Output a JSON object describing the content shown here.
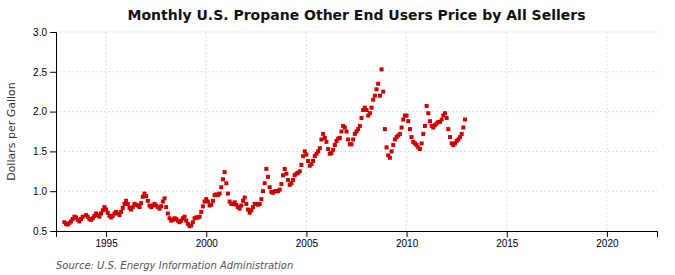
{
  "chart_data": {
    "type": "scatter",
    "title": "Monthly U.S. Propane Other End Users Price by All Sellers",
    "ylabel": "Dollars per Gallon",
    "annotations": [
      "Source: U.S. Energy Information Administration"
    ],
    "xlim": [
      1992.5,
      2022.5
    ],
    "ylim": [
      0.5,
      3.0
    ],
    "xticks": [
      1995,
      2000,
      2005,
      2010,
      2015,
      2020
    ],
    "yticks": [
      0.5,
      {
        "value": 1.0,
        "label": "1.0"
      },
      1.5,
      {
        "value": 2.0,
        "label": "2.0"
      },
      2.5,
      {
        "value": 3.0,
        "label": "3.0"
      }
    ],
    "grid": true,
    "color": "#cc0000",
    "marker": "square",
    "x": [
      1992.917,
      1993.0,
      1993.083,
      1993.167,
      1993.25,
      1993.333,
      1993.417,
      1993.5,
      1993.583,
      1993.667,
      1993.75,
      1993.833,
      1994.0,
      1994.083,
      1994.167,
      1994.25,
      1994.333,
      1994.417,
      1994.5,
      1994.583,
      1994.667,
      1994.75,
      1994.833,
      1994.917,
      1995.0,
      1995.083,
      1995.167,
      1995.25,
      1995.333,
      1995.417,
      1995.5,
      1995.583,
      1995.667,
      1995.75,
      1995.833,
      1995.917,
      1996.0,
      1996.083,
      1996.167,
      1996.25,
      1996.333,
      1996.417,
      1996.5,
      1996.583,
      1996.667,
      1996.75,
      1996.833,
      1996.917,
      1997.0,
      1997.083,
      1997.167,
      1997.25,
      1997.333,
      1997.417,
      1997.5,
      1997.583,
      1997.667,
      1997.75,
      1997.833,
      1997.917,
      1998.0,
      1998.083,
      1998.167,
      1998.25,
      1998.333,
      1998.417,
      1998.5,
      1998.583,
      1998.667,
      1998.75,
      1998.833,
      1998.917,
      1999.0,
      1999.083,
      1999.167,
      1999.25,
      1999.333,
      1999.417,
      1999.5,
      1999.583,
      1999.667,
      1999.75,
      1999.833,
      1999.917,
      2000.0,
      2000.083,
      2000.167,
      2000.25,
      2000.333,
      2000.417,
      2000.5,
      2000.583,
      2000.667,
      2000.75,
      2000.833,
      2000.917,
      2001.0,
      2001.083,
      2001.167,
      2001.25,
      2001.333,
      2001.417,
      2001.5,
      2001.583,
      2001.667,
      2001.75,
      2001.833,
      2001.917,
      2002.0,
      2002.083,
      2002.167,
      2002.25,
      2002.333,
      2002.417,
      2002.5,
      2002.583,
      2002.667,
      2002.75,
      2002.833,
      2002.917,
      2003.0,
      2003.083,
      2003.167,
      2003.25,
      2003.333,
      2003.417,
      2003.5,
      2003.583,
      2003.667,
      2003.75,
      2003.833,
      2003.917,
      2004.0,
      2004.083,
      2004.167,
      2004.25,
      2004.333,
      2004.417,
      2004.5,
      2004.583,
      2004.667,
      2004.75,
      2004.833,
      2004.917,
      2005.0,
      2005.083,
      2005.167,
      2005.25,
      2005.333,
      2005.417,
      2005.5,
      2005.583,
      2005.667,
      2005.75,
      2005.833,
      2005.917,
      2006.0,
      2006.083,
      2006.167,
      2006.25,
      2006.333,
      2006.417,
      2006.5,
      2006.583,
      2006.667,
      2006.75,
      2006.833,
      2006.917,
      2007.0,
      2007.083,
      2007.167,
      2007.25,
      2007.333,
      2007.417,
      2007.5,
      2007.583,
      2007.667,
      2007.75,
      2007.833,
      2007.917,
      2008.0,
      2008.083,
      2008.167,
      2008.25,
      2008.333,
      2008.417,
      2008.5,
      2008.583,
      2008.667,
      2008.75,
      2008.833,
      2008.917,
      2009.0,
      2009.083,
      2009.167,
      2009.25,
      2009.333,
      2009.417,
      2009.5,
      2009.583,
      2009.667,
      2009.75,
      2009.833,
      2009.917,
      2010.0,
      2010.083,
      2010.167,
      2010.25,
      2010.333,
      2010.417,
      2010.5,
      2010.583,
      2010.667,
      2010.75,
      2010.833,
      2010.917,
      2011.0,
      2011.083,
      2011.167,
      2011.25,
      2011.333,
      2011.417,
      2011.5,
      2011.583,
      2011.667,
      2011.75,
      2011.833,
      2011.917,
      2012.0,
      2012.083,
      2012.167,
      2012.25,
      2012.333,
      2012.417,
      2012.5,
      2012.583,
      2012.667,
      2012.75,
      2012.833,
      2012.917
    ],
    "values": [
      0.61,
      0.59,
      0.58,
      0.6,
      0.62,
      0.65,
      0.68,
      0.67,
      0.64,
      0.62,
      0.65,
      0.68,
      0.7,
      0.68,
      0.65,
      0.64,
      0.66,
      0.69,
      0.72,
      0.7,
      0.68,
      0.72,
      0.76,
      0.8,
      0.77,
      0.73,
      0.69,
      0.67,
      0.69,
      0.72,
      0.74,
      0.72,
      0.7,
      0.74,
      0.79,
      0.84,
      0.88,
      0.84,
      0.79,
      0.77,
      0.8,
      0.84,
      0.83,
      0.82,
      0.8,
      0.85,
      0.93,
      0.97,
      0.94,
      0.88,
      0.82,
      0.8,
      0.82,
      0.84,
      0.82,
      0.8,
      0.78,
      0.81,
      0.87,
      0.91,
      0.8,
      0.72,
      0.66,
      0.63,
      0.64,
      0.66,
      0.65,
      0.63,
      0.61,
      0.63,
      0.66,
      0.68,
      0.63,
      0.59,
      0.56,
      0.57,
      0.61,
      0.66,
      0.67,
      0.67,
      0.68,
      0.74,
      0.81,
      0.87,
      0.9,
      0.87,
      0.82,
      0.83,
      0.88,
      0.95,
      0.96,
      0.95,
      0.97,
      1.05,
      1.15,
      1.24,
      1.1,
      0.97,
      0.87,
      0.84,
      0.84,
      0.86,
      0.83,
      0.8,
      0.78,
      0.82,
      0.88,
      0.92,
      0.84,
      0.77,
      0.73,
      0.76,
      0.8,
      0.84,
      0.84,
      0.83,
      0.84,
      0.9,
      1.0,
      1.1,
      1.28,
      1.18,
      1.05,
      0.99,
      0.98,
      1.0,
      1.0,
      1.0,
      1.02,
      1.09,
      1.2,
      1.28,
      1.22,
      1.14,
      1.08,
      1.1,
      1.14,
      1.2,
      1.22,
      1.23,
      1.25,
      1.33,
      1.44,
      1.5,
      1.46,
      1.38,
      1.32,
      1.34,
      1.38,
      1.44,
      1.47,
      1.5,
      1.54,
      1.65,
      1.72,
      1.67,
      1.62,
      1.53,
      1.47,
      1.48,
      1.52,
      1.58,
      1.63,
      1.66,
      1.67,
      1.75,
      1.82,
      1.8,
      1.75,
      1.65,
      1.59,
      1.59,
      1.65,
      1.72,
      1.75,
      1.78,
      1.82,
      1.92,
      2.02,
      2.05,
      2.02,
      1.95,
      1.98,
      2.05,
      2.15,
      2.2,
      2.28,
      2.35,
      2.2,
      2.53,
      2.25,
      1.78,
      1.55,
      1.45,
      1.42,
      1.5,
      1.58,
      1.65,
      1.68,
      1.7,
      1.72,
      1.8,
      1.9,
      1.95,
      1.95,
      1.88,
      1.78,
      1.68,
      1.62,
      1.6,
      1.58,
      1.55,
      1.53,
      1.6,
      1.72,
      1.82,
      2.07,
      1.98,
      1.88,
      1.82,
      1.8,
      1.83,
      1.85,
      1.87,
      1.87,
      1.9,
      1.95,
      1.98,
      1.92,
      1.78,
      1.68,
      1.6,
      1.58,
      1.6,
      1.63,
      1.65,
      1.68,
      1.72,
      1.8,
      1.9
    ]
  }
}
